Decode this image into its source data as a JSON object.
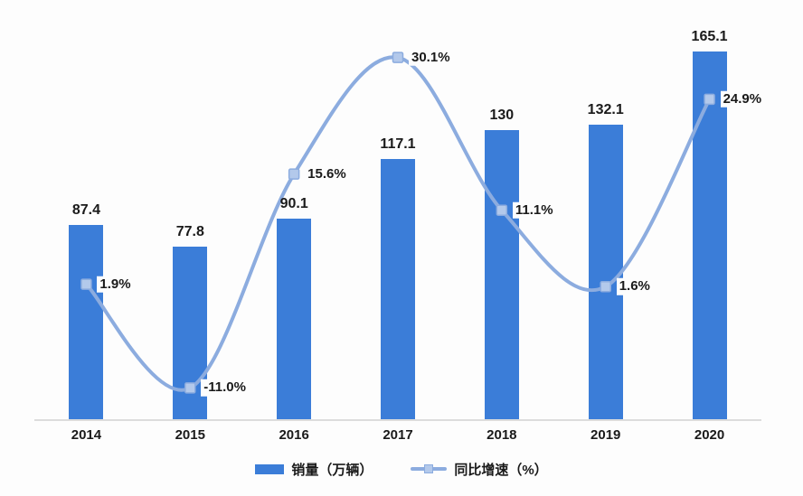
{
  "chart_data": {
    "type": "combo",
    "categories": [
      "2014",
      "2015",
      "2016",
      "2017",
      "2018",
      "2019",
      "2020"
    ],
    "series": [
      {
        "name": "销量（万辆）",
        "type": "bar",
        "values": [
          87.4,
          77.8,
          90.1,
          117.1,
          130,
          132.1,
          165.1
        ],
        "data_labels": [
          "87.4",
          "77.8",
          "90.1",
          "117.1",
          "130",
          "132.1",
          "165.1"
        ],
        "color": "#3B7DD8",
        "axis_range": [
          0,
          180
        ]
      },
      {
        "name": "同比增速（%）",
        "type": "line",
        "smooth": true,
        "values": [
          1.9,
          -11.0,
          15.6,
          30.1,
          11.1,
          1.6,
          24.9
        ],
        "data_labels": [
          "1.9%",
          "-11.0%",
          "15.6%",
          "30.1%",
          "11.1%",
          "1.6%",
          "24.9%"
        ],
        "color": "#8CACDF",
        "marker_fill": "#B3C9EB",
        "axis_range": [
          -15,
          35
        ]
      }
    ],
    "legend": [
      "销量（万辆）",
      "同比增速（%）"
    ],
    "legend_position": "bottom",
    "grid": false,
    "axis_line_color": "#DCDCDC",
    "label_color": "#1A1A1A",
    "background": "#FDFDFD"
  }
}
